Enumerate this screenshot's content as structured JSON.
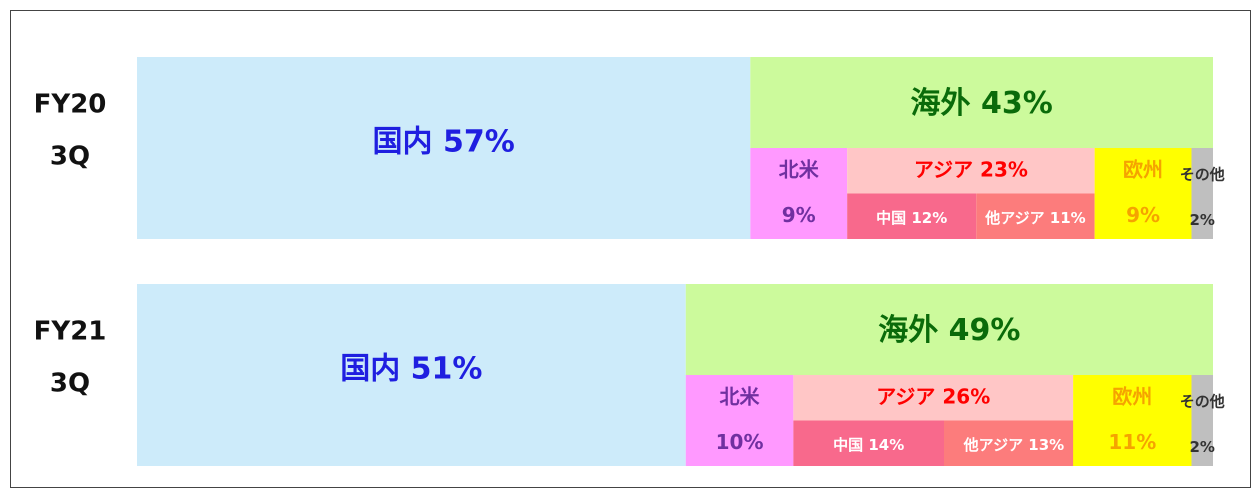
{
  "chart_data": {
    "type": "nested_bar",
    "xlim": [
      0,
      100
    ],
    "rows": [
      {
        "name_lines": [
          "FY20",
          "3Q"
        ],
        "domestic": {
          "label": "国内 57%",
          "value": 57,
          "color": "#cdebfa",
          "text_color": "#1f1fe0"
        },
        "overseas": {
          "label": "海外 43%",
          "value": 43,
          "color": "#ccfa9c",
          "text_color": "#0a6b0a",
          "regions": [
            {
              "label_lines": [
                "北米",
                "9%"
              ],
              "value": 9,
              "color": "#ff99ff",
              "text_color": "#7030a0"
            },
            {
              "label": "アジア 23%",
              "value": 23,
              "color": "#ffc6c6",
              "text_color": "#ff0000",
              "sub": [
                {
                  "label": "中国 12%",
                  "value": 12,
                  "color": "#f8698c",
                  "text_color": "#ffffff"
                },
                {
                  "label": "他アジア 11%",
                  "value": 11,
                  "color": "#fc7c7c",
                  "text_color": "#ffffff"
                }
              ]
            },
            {
              "label_lines": [
                "欧州",
                "9%"
              ],
              "value": 9,
              "color": "#ffff00",
              "text_color": "#f5a300"
            },
            {
              "label_lines": [
                "その他",
                "2%"
              ],
              "value": 2,
              "color": "#bfbfbf",
              "text_color": "#333333"
            }
          ]
        }
      },
      {
        "name_lines": [
          "FY21",
          "3Q"
        ],
        "domestic": {
          "label": "国内 51%",
          "value": 51,
          "color": "#cdebfa",
          "text_color": "#1f1fe0"
        },
        "overseas": {
          "label": "海外 49%",
          "value": 49,
          "color": "#ccfa9c",
          "text_color": "#0a6b0a",
          "regions": [
            {
              "label_lines": [
                "北米",
                "10%"
              ],
              "value": 10,
              "color": "#ff99ff",
              "text_color": "#7030a0"
            },
            {
              "label": "アジア 26%",
              "value": 26,
              "color": "#ffc6c6",
              "text_color": "#ff0000",
              "sub": [
                {
                  "label": "中国 14%",
                  "value": 14,
                  "color": "#f8698c",
                  "text_color": "#ffffff"
                },
                {
                  "label": "他アジア 13%",
                  "value": 13,
                  "color": "#fc7c7c",
                  "text_color": "#ffffff"
                }
              ]
            },
            {
              "label_lines": [
                "欧州",
                "11%"
              ],
              "value": 11,
              "color": "#ffff00",
              "text_color": "#f5a300"
            },
            {
              "label_lines": [
                "その他",
                "2%"
              ],
              "value": 2,
              "color": "#bfbfbf",
              "text_color": "#333333"
            }
          ]
        }
      }
    ]
  }
}
